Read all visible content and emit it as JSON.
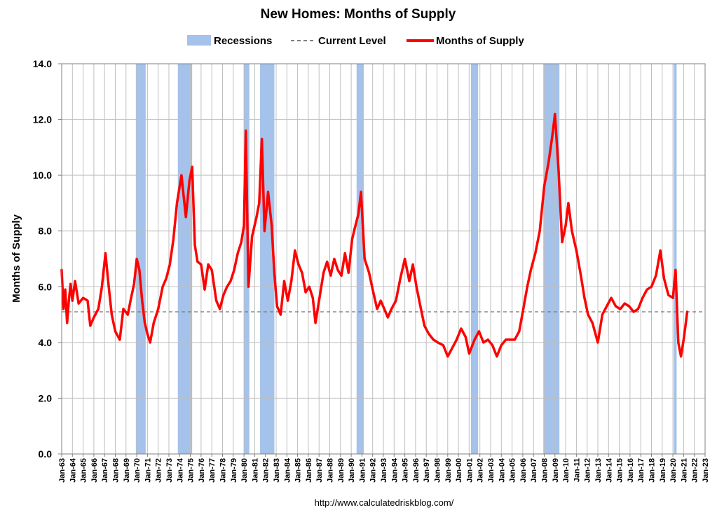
{
  "chart_data": {
    "type": "line",
    "title": "New Homes: Months of Supply",
    "ylabel": "Months of Supply",
    "xlabel": "",
    "source": "http://www.calculatedriskblog.com/",
    "ylim": [
      0,
      14
    ],
    "xlim": [
      "1963-01",
      "2023-01"
    ],
    "yticks": [
      "0.0",
      "2.0",
      "4.0",
      "6.0",
      "8.0",
      "10.0",
      "12.0",
      "14.0"
    ],
    "xticks": [
      "Jan-63",
      "Jan-64",
      "Jan-65",
      "Jan-66",
      "Jan-67",
      "Jan-68",
      "Jan-69",
      "Jan-70",
      "Jan-71",
      "Jan-72",
      "Jan-73",
      "Jan-74",
      "Jan-75",
      "Jan-76",
      "Jan-77",
      "Jan-78",
      "Jan-79",
      "Jan-80",
      "Jan-81",
      "Jan-82",
      "Jan-83",
      "Jan-84",
      "Jan-85",
      "Jan-86",
      "Jan-87",
      "Jan-88",
      "Jan-89",
      "Jan-90",
      "Jan-91",
      "Jan-92",
      "Jan-93",
      "Jan-94",
      "Jan-95",
      "Jan-96",
      "Jan-97",
      "Jan-98",
      "Jan-99",
      "Jan-00",
      "Jan-01",
      "Jan-02",
      "Jan-03",
      "Jan-04",
      "Jan-05",
      "Jan-06",
      "Jan-07",
      "Jan-08",
      "Jan-09",
      "Jan-10",
      "Jan-11",
      "Jan-12",
      "Jan-13",
      "Jan-14",
      "Jan-15",
      "Jan-16",
      "Jan-17",
      "Jan-18",
      "Jan-19",
      "Jan-20",
      "Jan-21",
      "Jan-22",
      "Jan-23"
    ],
    "grid": true,
    "legend": {
      "placement": "top",
      "entries": [
        {
          "label": "Recessions",
          "style": "band",
          "color": "#a4c2ea"
        },
        {
          "label": "Current Level",
          "style": "dashed",
          "color": "#808080"
        },
        {
          "label": "Months of Supply",
          "style": "line",
          "color": "#ff0000"
        }
      ]
    },
    "recessions": [
      [
        "1969-12",
        "1970-11"
      ],
      [
        "1973-11",
        "1975-03"
      ],
      [
        "1980-01",
        "1980-07"
      ],
      [
        "1981-07",
        "1982-11"
      ],
      [
        "1990-07",
        "1991-03"
      ],
      [
        "2001-03",
        "2001-11"
      ],
      [
        "2007-12",
        "2009-06"
      ],
      [
        "2020-02",
        "2020-04"
      ]
    ],
    "current_level": 5.1,
    "series": [
      {
        "name": "Months of Supply",
        "color": "#ff0000",
        "points": [
          [
            "1963-01",
            6.6
          ],
          [
            "1963-03",
            5.2
          ],
          [
            "1963-05",
            5.9
          ],
          [
            "1963-07",
            4.7
          ],
          [
            "1963-09",
            5.5
          ],
          [
            "1963-11",
            6.1
          ],
          [
            "1964-01",
            5.5
          ],
          [
            "1964-04",
            6.2
          ],
          [
            "1964-08",
            5.4
          ],
          [
            "1965-01",
            5.6
          ],
          [
            "1965-06",
            5.5
          ],
          [
            "1965-09",
            4.6
          ],
          [
            "1966-01",
            4.9
          ],
          [
            "1966-06",
            5.2
          ],
          [
            "1966-10",
            6.0
          ],
          [
            "1967-02",
            7.2
          ],
          [
            "1967-05",
            6.2
          ],
          [
            "1967-09",
            5.0
          ],
          [
            "1968-01",
            4.4
          ],
          [
            "1968-06",
            4.1
          ],
          [
            "1968-10",
            5.2
          ],
          [
            "1969-03",
            5.0
          ],
          [
            "1969-06",
            5.5
          ],
          [
            "1969-10",
            6.1
          ],
          [
            "1970-01",
            7.0
          ],
          [
            "1970-04",
            6.6
          ],
          [
            "1970-07",
            5.5
          ],
          [
            "1970-10",
            4.7
          ],
          [
            "1971-01",
            4.3
          ],
          [
            "1971-04",
            4.0
          ],
          [
            "1971-08",
            4.7
          ],
          [
            "1972-01",
            5.2
          ],
          [
            "1972-06",
            6.0
          ],
          [
            "1972-10",
            6.3
          ],
          [
            "1973-02",
            6.8
          ],
          [
            "1973-06",
            7.7
          ],
          [
            "1973-10",
            9.0
          ],
          [
            "1974-03",
            10.0
          ],
          [
            "1974-08",
            8.5
          ],
          [
            "1974-12",
            9.8
          ],
          [
            "1975-03",
            10.3
          ],
          [
            "1975-06",
            7.5
          ],
          [
            "1975-09",
            6.9
          ],
          [
            "1976-01",
            6.8
          ],
          [
            "1976-05",
            5.9
          ],
          [
            "1976-09",
            6.8
          ],
          [
            "1977-01",
            6.6
          ],
          [
            "1977-06",
            5.5
          ],
          [
            "1977-10",
            5.2
          ],
          [
            "1978-02",
            5.7
          ],
          [
            "1978-06",
            6.0
          ],
          [
            "1978-10",
            6.2
          ],
          [
            "1979-02",
            6.6
          ],
          [
            "1979-06",
            7.2
          ],
          [
            "1979-10",
            7.6
          ],
          [
            "1980-01",
            8.2
          ],
          [
            "1980-03",
            11.6
          ],
          [
            "1980-06",
            6.0
          ],
          [
            "1980-10",
            7.8
          ],
          [
            "1981-03",
            8.5
          ],
          [
            "1981-06",
            9.0
          ],
          [
            "1981-09",
            11.3
          ],
          [
            "1981-12",
            8.0
          ],
          [
            "1982-04",
            9.4
          ],
          [
            "1982-08",
            8.2
          ],
          [
            "1982-11",
            6.5
          ],
          [
            "1983-02",
            5.3
          ],
          [
            "1983-06",
            5.0
          ],
          [
            "1983-10",
            6.2
          ],
          [
            "1984-02",
            5.5
          ],
          [
            "1984-06",
            6.2
          ],
          [
            "1984-10",
            7.3
          ],
          [
            "1985-02",
            6.8
          ],
          [
            "1985-06",
            6.5
          ],
          [
            "1985-10",
            5.8
          ],
          [
            "1986-02",
            6.0
          ],
          [
            "1986-06",
            5.6
          ],
          [
            "1986-09",
            4.7
          ],
          [
            "1987-02",
            5.7
          ],
          [
            "1987-06",
            6.5
          ],
          [
            "1987-10",
            6.9
          ],
          [
            "1988-02",
            6.4
          ],
          [
            "1988-06",
            7.0
          ],
          [
            "1988-10",
            6.6
          ],
          [
            "1989-02",
            6.4
          ],
          [
            "1989-06",
            7.2
          ],
          [
            "1989-10",
            6.5
          ],
          [
            "1990-02",
            7.7
          ],
          [
            "1990-05",
            8.1
          ],
          [
            "1990-09",
            8.6
          ],
          [
            "1990-12",
            9.4
          ],
          [
            "1991-04",
            7.0
          ],
          [
            "1991-09",
            6.5
          ],
          [
            "1992-01",
            5.9
          ],
          [
            "1992-06",
            5.2
          ],
          [
            "1992-10",
            5.5
          ],
          [
            "1993-02",
            5.2
          ],
          [
            "1993-06",
            4.9
          ],
          [
            "1993-10",
            5.2
          ],
          [
            "1994-03",
            5.5
          ],
          [
            "1994-08",
            6.3
          ],
          [
            "1995-01",
            7.0
          ],
          [
            "1995-06",
            6.2
          ],
          [
            "1995-10",
            6.8
          ],
          [
            "1996-02",
            6.0
          ],
          [
            "1996-07",
            5.2
          ],
          [
            "1996-11",
            4.6
          ],
          [
            "1997-04",
            4.3
          ],
          [
            "1997-09",
            4.1
          ],
          [
            "1998-02",
            4.0
          ],
          [
            "1998-08",
            3.9
          ],
          [
            "1999-01",
            3.5
          ],
          [
            "1999-06",
            3.8
          ],
          [
            "1999-11",
            4.1
          ],
          [
            "2000-04",
            4.5
          ],
          [
            "2000-09",
            4.2
          ],
          [
            "2001-01",
            3.6
          ],
          [
            "2001-07",
            4.1
          ],
          [
            "2001-12",
            4.4
          ],
          [
            "2002-05",
            4.0
          ],
          [
            "2002-10",
            4.1
          ],
          [
            "2003-03",
            3.9
          ],
          [
            "2003-08",
            3.5
          ],
          [
            "2004-01",
            3.9
          ],
          [
            "2004-06",
            4.1
          ],
          [
            "2004-11",
            4.1
          ],
          [
            "2005-04",
            4.1
          ],
          [
            "2005-09",
            4.4
          ],
          [
            "2006-01",
            5.1
          ],
          [
            "2006-06",
            6.0
          ],
          [
            "2006-10",
            6.6
          ],
          [
            "2007-03",
            7.2
          ],
          [
            "2007-08",
            8.0
          ],
          [
            "2008-01",
            9.6
          ],
          [
            "2008-06",
            10.5
          ],
          [
            "2008-10",
            11.4
          ],
          [
            "2009-01",
            12.2
          ],
          [
            "2009-05",
            10.2
          ],
          [
            "2009-09",
            7.6
          ],
          [
            "2010-01",
            8.2
          ],
          [
            "2010-04",
            9.0
          ],
          [
            "2010-08",
            8.0
          ],
          [
            "2011-01",
            7.3
          ],
          [
            "2011-06",
            6.4
          ],
          [
            "2011-10",
            5.6
          ],
          [
            "2012-02",
            5.0
          ],
          [
            "2012-07",
            4.7
          ],
          [
            "2013-01",
            4.0
          ],
          [
            "2013-06",
            5.0
          ],
          [
            "2013-11",
            5.3
          ],
          [
            "2014-04",
            5.6
          ],
          [
            "2014-09",
            5.3
          ],
          [
            "2015-02",
            5.2
          ],
          [
            "2015-07",
            5.4
          ],
          [
            "2015-12",
            5.3
          ],
          [
            "2016-05",
            5.1
          ],
          [
            "2016-10",
            5.2
          ],
          [
            "2017-03",
            5.6
          ],
          [
            "2017-08",
            5.9
          ],
          [
            "2018-01",
            6.0
          ],
          [
            "2018-06",
            6.4
          ],
          [
            "2018-11",
            7.3
          ],
          [
            "2019-03",
            6.3
          ],
          [
            "2019-08",
            5.7
          ],
          [
            "2020-01",
            5.6
          ],
          [
            "2020-04",
            6.6
          ],
          [
            "2020-07",
            4.0
          ],
          [
            "2020-10",
            3.5
          ],
          [
            "2021-01",
            4.1
          ],
          [
            "2021-03",
            4.6
          ],
          [
            "2021-05",
            5.1
          ]
        ]
      }
    ]
  }
}
